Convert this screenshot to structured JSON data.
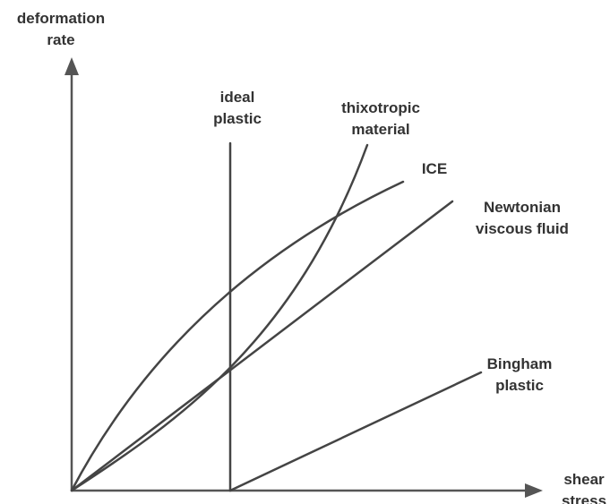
{
  "axes": {
    "y_label": [
      "deformation",
      "rate"
    ],
    "x_label": [
      "shear",
      "stress"
    ]
  },
  "curves": [
    {
      "label": [
        "ideal",
        "plastic"
      ]
    },
    {
      "label": [
        "thixotropic",
        "material"
      ]
    },
    {
      "label": [
        "ICE"
      ]
    },
    {
      "label": [
        "Newtonian",
        "viscous fluid"
      ]
    },
    {
      "label": [
        "Bingham",
        "plastic"
      ]
    }
  ]
}
